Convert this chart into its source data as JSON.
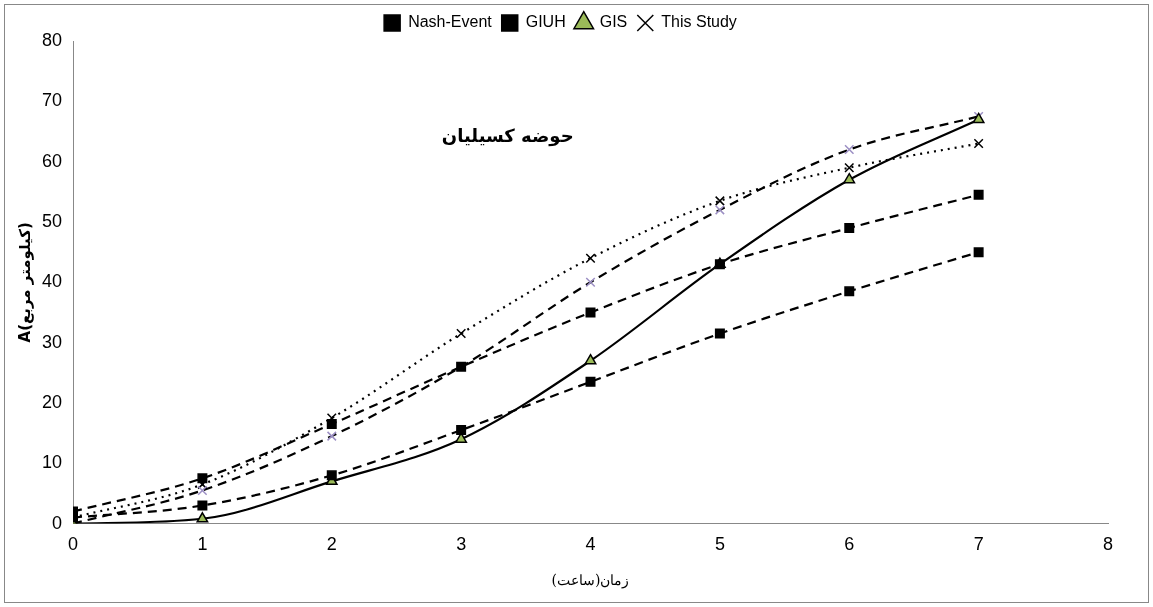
{
  "chart_data": {
    "type": "line",
    "title": "حوضه کسیلیان",
    "xlabel": "زمان(ساعت)",
    "ylabel": "A(کیلومتر مربع)",
    "x": [
      0,
      1,
      2,
      3,
      4,
      5,
      6,
      7
    ],
    "series": [
      {
        "name": "Nash-Event",
        "color": "#000000",
        "marker": "square",
        "line_style": "dashed",
        "values": [
          1,
          3,
          8,
          15.5,
          23.5,
          31.5,
          38.5,
          45
        ]
      },
      {
        "name": "GIUH",
        "color": "#000000",
        "marker": "square",
        "line_style": "dashed",
        "values": [
          2,
          7.5,
          16.5,
          26,
          35,
          43,
          49,
          54.5
        ]
      },
      {
        "name": "GIS",
        "color": "#9bbb59",
        "marker": "triangle",
        "line_style": "solid",
        "values": [
          0,
          0.8,
          7,
          14,
          27,
          43,
          57,
          67
        ]
      },
      {
        "color": "#9c8fc4",
        "marker": "cross",
        "line_style": "dashed",
        "values": [
          0,
          5.5,
          14.5,
          26,
          40,
          52,
          62,
          67.5
        ]
      },
      {
        "name": "This Study",
        "color": "#000000",
        "marker": "cross",
        "line_style": "dotted",
        "values": [
          1,
          6.5,
          17.5,
          31.5,
          44,
          53.5,
          59,
          63
        ]
      }
    ],
    "xlim": [
      0,
      8
    ],
    "xticks": [
      0,
      1,
      2,
      3,
      4,
      5,
      6,
      7,
      8
    ],
    "ylim": [
      0,
      80
    ],
    "yticks": [
      0,
      10,
      20,
      30,
      40,
      50,
      60,
      70,
      80
    ],
    "grid": false,
    "legend": "top"
  }
}
